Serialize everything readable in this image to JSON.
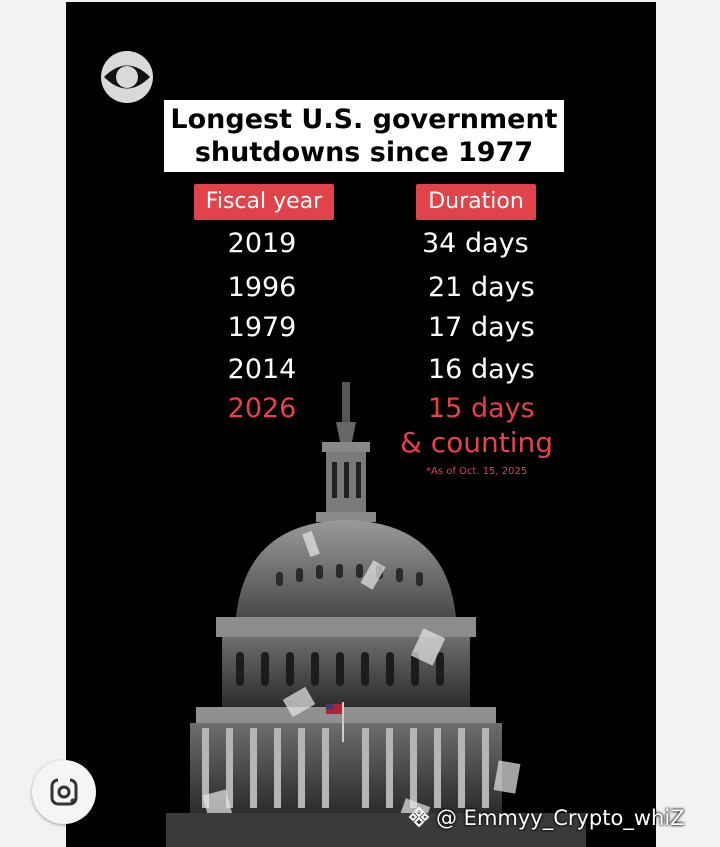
{
  "title": {
    "line1": "Longest U.S. government",
    "line2": "shutdowns since 1977"
  },
  "columns": {
    "year_label": "Fiscal year",
    "duration_label": "Duration"
  },
  "rows": [
    {
      "year": "2019",
      "duration": "34 days"
    },
    {
      "year": "1996",
      "duration": "21 days"
    },
    {
      "year": "1979",
      "duration": "17 days"
    },
    {
      "year": "2014",
      "duration": "16 days"
    },
    {
      "year": "2026",
      "duration": "15 days"
    }
  ],
  "current": {
    "counting": "& counting",
    "as_of": "*As of Oct. 15, 2025"
  },
  "watermark": {
    "handle": "@ Emmyy_Crypto_whiZ"
  },
  "colors": {
    "accent_red": "#e0434a",
    "background": "#000000"
  },
  "icons": {
    "logo": "cbs-eye-logo",
    "lens": "google-lens-icon",
    "watermark": "binance-icon"
  }
}
